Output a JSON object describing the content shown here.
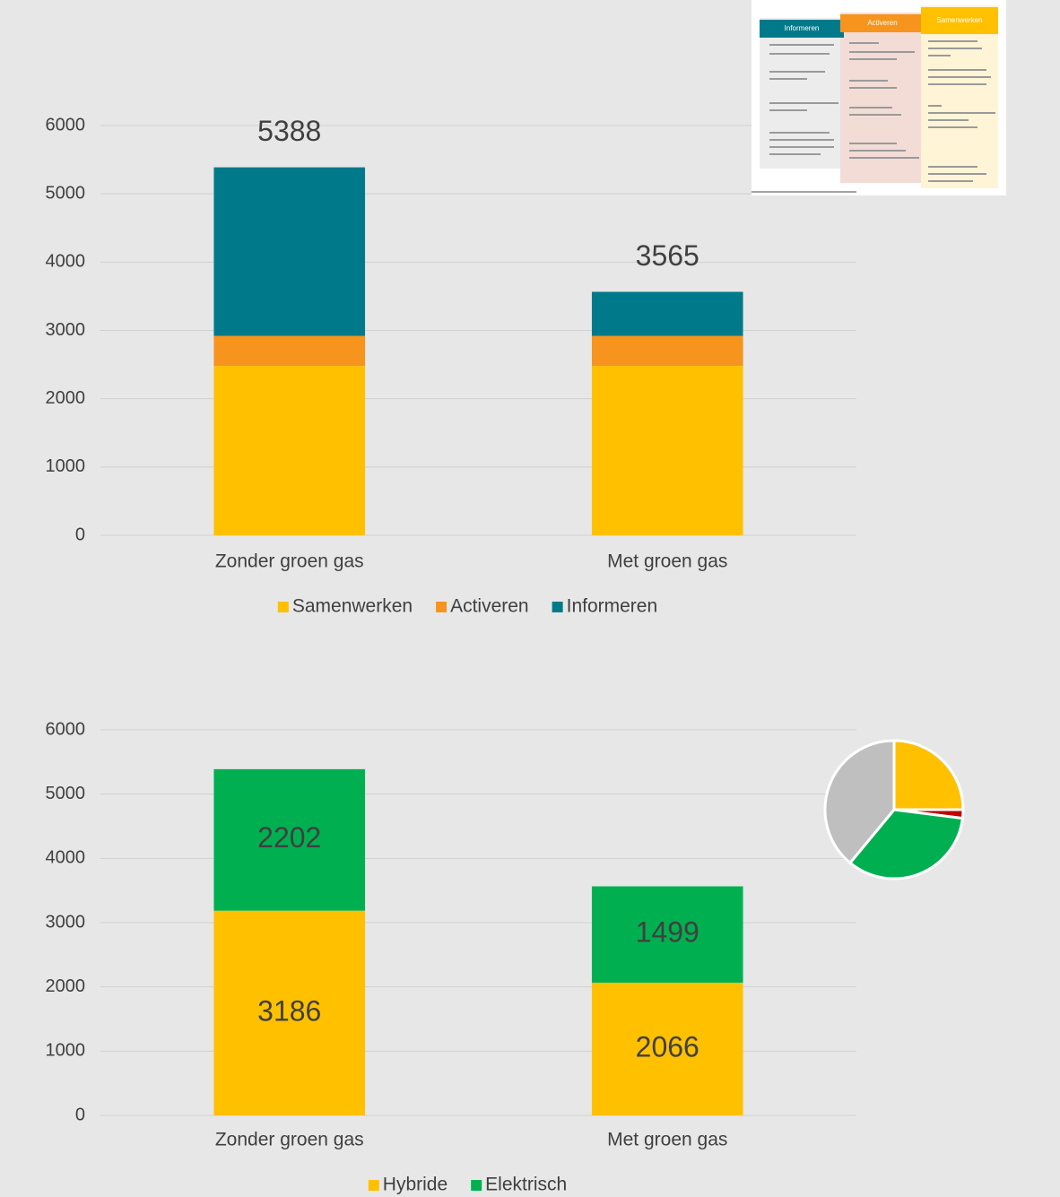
{
  "chart_data": [
    {
      "type": "bar",
      "stacked": true,
      "categories": [
        "Zonder groen gas",
        "Met groen gas"
      ],
      "series": [
        {
          "name": "Samenwerken",
          "color": "#FFC000",
          "values": [
            2480,
            2480
          ]
        },
        {
          "name": "Activeren",
          "color": "#F7941D",
          "values": [
            440,
            440
          ]
        },
        {
          "name": "Informeren",
          "color": "#007A8A",
          "values": [
            2468,
            645
          ]
        }
      ],
      "totals": [
        5388,
        3565
      ],
      "ylim": [
        0,
        6000
      ],
      "yticks": [
        0,
        1000,
        2000,
        3000,
        4000,
        5000,
        6000
      ],
      "grid": true,
      "legend": "bottom"
    },
    {
      "type": "bar",
      "stacked": true,
      "categories": [
        "Zonder groen gas",
        "Met groen gas"
      ],
      "series": [
        {
          "name": "Hybride",
          "color": "#FFC000",
          "values": [
            3186,
            2066
          ]
        },
        {
          "name": "Elektrisch",
          "color": "#00B050",
          "values": [
            2202,
            1499
          ]
        }
      ],
      "ylim": [
        0,
        6000
      ],
      "yticks": [
        0,
        1000,
        2000,
        3000,
        4000,
        5000,
        6000
      ],
      "grid": true,
      "legend": "bottom"
    },
    {
      "type": "pie",
      "values": [
        25,
        2,
        34,
        39
      ],
      "colors": [
        "#FFC000",
        "#C00000",
        "#00B050",
        "#BFBFBF"
      ]
    }
  ],
  "inset": {
    "headers": [
      "Informeren",
      "Activeren",
      "Samenwerken"
    ]
  }
}
